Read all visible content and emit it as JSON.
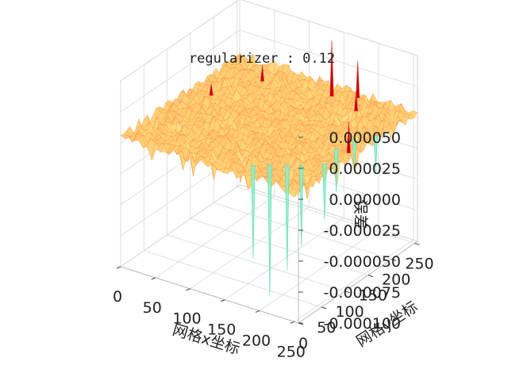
{
  "chart_data": {
    "type": "surface3d",
    "title": "regularizer : 0.12",
    "xlabel": "网格x坐标",
    "ylabel": "网格y坐标",
    "zlabel": "误差",
    "x_ticks": [
      "0",
      "50",
      "100",
      "150",
      "200",
      "250"
    ],
    "y_ticks": [
      "0",
      "50",
      "100",
      "150",
      "200",
      "250"
    ],
    "z_ticks": [
      "0.000050",
      "0.000025",
      "0.000000",
      "-0.000025",
      "-0.000050",
      "-0.000075",
      "-0.000100"
    ],
    "xlim": [
      0,
      256
    ],
    "ylim": [
      0,
      256
    ],
    "zlim": [
      -0.0001,
      5e-05
    ],
    "colormap": "rainbow",
    "surface_baseline": 5e-06,
    "spikes": [
      {
        "x": 150,
        "y": 230,
        "z": 5e-05
      },
      {
        "x": 178,
        "y": 244,
        "z": 3.5e-05
      },
      {
        "x": 248,
        "y": 120,
        "z": 3e-05
      },
      {
        "x": 195,
        "y": 215,
        "z": 2e-05
      },
      {
        "x": 60,
        "y": 215,
        "z": 1.8e-05
      },
      {
        "x": 30,
        "y": 150,
        "z": 1.5e-05
      }
    ],
    "dips": [
      {
        "x": 188,
        "y": 40,
        "z": -0.0001
      },
      {
        "x": 205,
        "y": 52,
        "z": -8e-05
      },
      {
        "x": 220,
        "y": 60,
        "z": -6e-05
      },
      {
        "x": 172,
        "y": 28,
        "z": -7e-05
      },
      {
        "x": 240,
        "y": 80,
        "z": -4e-05
      },
      {
        "x": 230,
        "y": 120,
        "z": -3e-05
      },
      {
        "x": 250,
        "y": 175,
        "z": -2.5e-05
      },
      {
        "x": 236,
        "y": 150,
        "z": -2e-05
      }
    ]
  }
}
